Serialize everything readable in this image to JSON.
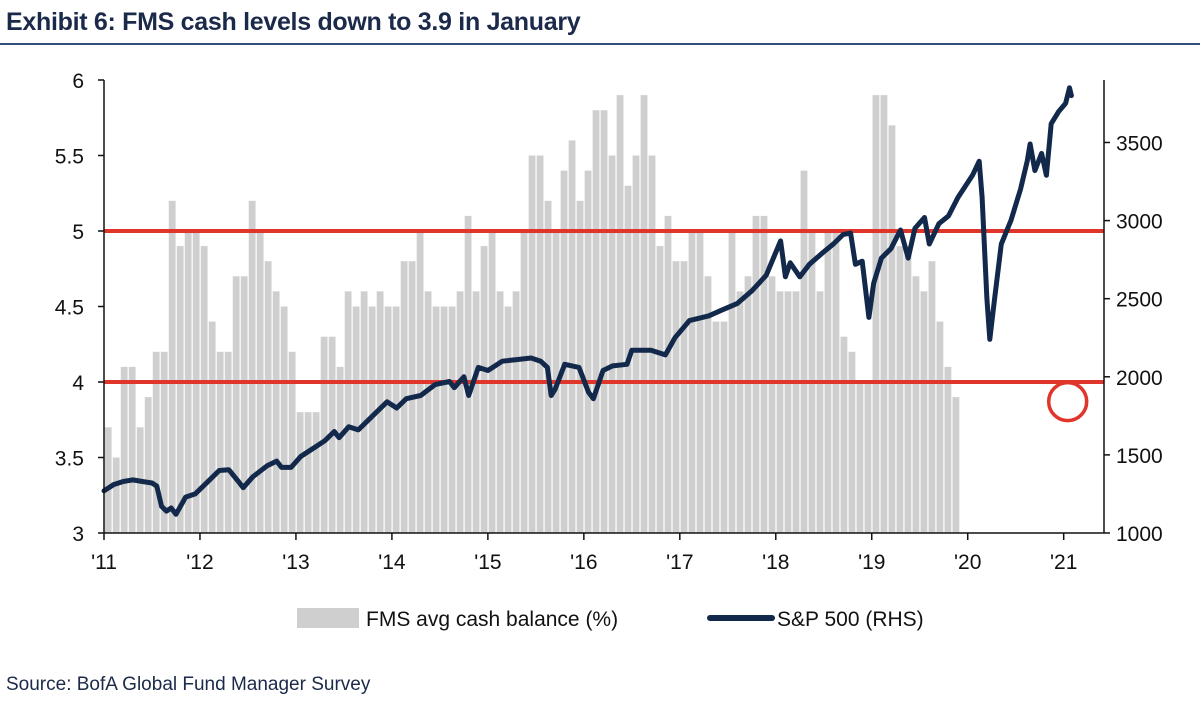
{
  "title": "Exhibit 6: FMS cash levels down to 3.9 in January",
  "source": "Source: BofA Global Fund Manager Survey",
  "colors": {
    "bars": "#cfcfcf",
    "line": "#13294b",
    "threshold": "#e0352b",
    "title": "#1b2a4a",
    "rule": "#33507a"
  },
  "chart_data": {
    "type": "bar+line",
    "title": "Exhibit 6: FMS cash levels down to 3.9 in January",
    "x_tick_labels": [
      "'11",
      "'12",
      "'13",
      "'14",
      "'15",
      "'16",
      "'17",
      "'18",
      "'19",
      "'20",
      "'21"
    ],
    "x_range_years": [
      2011.0,
      2021.42
    ],
    "y_left": {
      "range": [
        3,
        6
      ],
      "ticks": [
        3,
        3.5,
        4,
        4.5,
        5,
        5.5,
        6
      ]
    },
    "y_right": {
      "range": [
        1000,
        3900
      ],
      "ticks": [
        1000,
        1500,
        2000,
        2500,
        3000,
        3500
      ]
    },
    "legend": {
      "position": "bottom",
      "entries": [
        "FMS avg cash balance (%)",
        "S&P 500 (RHS)"
      ]
    },
    "reference_lines": [
      5.0,
      4.0
    ],
    "highlight": {
      "series": "FMS avg cash balance (%)",
      "month": "2021-01",
      "value": 3.9
    },
    "series": [
      {
        "name": "FMS avg cash balance (%)",
        "kind": "bar",
        "axis": "left",
        "start": "2011-01",
        "frequency": "monthly",
        "values": [
          3.7,
          3.5,
          4.1,
          4.1,
          3.7,
          3.9,
          4.2,
          4.2,
          5.2,
          4.9,
          5.0,
          5.0,
          4.9,
          4.4,
          4.2,
          4.2,
          4.7,
          4.7,
          5.2,
          5.0,
          4.8,
          4.6,
          4.5,
          4.2,
          3.8,
          3.8,
          3.8,
          4.3,
          4.3,
          4.1,
          4.6,
          4.5,
          4.6,
          4.5,
          4.6,
          4.5,
          4.5,
          4.8,
          4.8,
          5.0,
          4.6,
          4.5,
          4.5,
          4.5,
          4.6,
          5.1,
          4.6,
          4.9,
          5.0,
          4.6,
          4.5,
          4.6,
          5.0,
          5.5,
          5.5,
          5.2,
          5.0,
          5.4,
          5.6,
          5.2,
          5.4,
          5.8,
          5.8,
          5.5,
          5.9,
          5.3,
          5.5,
          5.9,
          5.5,
          4.9,
          5.1,
          4.8,
          4.8,
          5.0,
          5.0,
          4.7,
          4.4,
          4.4,
          5.0,
          4.6,
          4.7,
          5.1,
          5.1,
          4.7,
          4.6,
          4.6,
          4.6,
          5.4,
          5.0,
          4.6,
          5.0,
          5.0,
          4.3,
          4.2,
          4.0,
          4.0,
          5.9,
          5.9,
          5.7,
          4.9,
          4.9,
          4.7,
          4.6,
          4.8,
          4.4,
          4.1,
          3.9
        ]
      },
      {
        "name": "S&P 500 (RHS)",
        "kind": "line",
        "axis": "right",
        "x_unit": "year",
        "points": [
          [
            2011.0,
            1270
          ],
          [
            2011.1,
            1310
          ],
          [
            2011.2,
            1330
          ],
          [
            2011.3,
            1340
          ],
          [
            2011.4,
            1330
          ],
          [
            2011.5,
            1320
          ],
          [
            2011.55,
            1300
          ],
          [
            2011.6,
            1170
          ],
          [
            2011.65,
            1140
          ],
          [
            2011.7,
            1160
          ],
          [
            2011.75,
            1120
          ],
          [
            2011.85,
            1230
          ],
          [
            2011.95,
            1250
          ],
          [
            2012.1,
            1340
          ],
          [
            2012.2,
            1400
          ],
          [
            2012.3,
            1405
          ],
          [
            2012.4,
            1330
          ],
          [
            2012.45,
            1290
          ],
          [
            2012.55,
            1360
          ],
          [
            2012.7,
            1430
          ],
          [
            2012.8,
            1460
          ],
          [
            2012.85,
            1420
          ],
          [
            2012.95,
            1420
          ],
          [
            2013.05,
            1490
          ],
          [
            2013.2,
            1550
          ],
          [
            2013.3,
            1590
          ],
          [
            2013.4,
            1650
          ],
          [
            2013.45,
            1610
          ],
          [
            2013.55,
            1680
          ],
          [
            2013.65,
            1660
          ],
          [
            2013.8,
            1750
          ],
          [
            2013.95,
            1840
          ],
          [
            2014.05,
            1800
          ],
          [
            2014.15,
            1860
          ],
          [
            2014.3,
            1880
          ],
          [
            2014.45,
            1950
          ],
          [
            2014.6,
            1970
          ],
          [
            2014.65,
            1930
          ],
          [
            2014.75,
            2000
          ],
          [
            2014.8,
            1880
          ],
          [
            2014.9,
            2060
          ],
          [
            2015.0,
            2040
          ],
          [
            2015.15,
            2100
          ],
          [
            2015.3,
            2110
          ],
          [
            2015.45,
            2120
          ],
          [
            2015.55,
            2100
          ],
          [
            2015.62,
            2060
          ],
          [
            2015.66,
            1880
          ],
          [
            2015.7,
            1920
          ],
          [
            2015.8,
            2080
          ],
          [
            2015.95,
            2060
          ],
          [
            2016.05,
            1900
          ],
          [
            2016.1,
            1860
          ],
          [
            2016.2,
            2040
          ],
          [
            2016.3,
            2070
          ],
          [
            2016.45,
            2080
          ],
          [
            2016.5,
            2170
          ],
          [
            2016.7,
            2170
          ],
          [
            2016.85,
            2140
          ],
          [
            2016.95,
            2250
          ],
          [
            2017.1,
            2360
          ],
          [
            2017.3,
            2390
          ],
          [
            2017.45,
            2430
          ],
          [
            2017.6,
            2470
          ],
          [
            2017.75,
            2550
          ],
          [
            2017.9,
            2650
          ],
          [
            2018.05,
            2870
          ],
          [
            2018.1,
            2640
          ],
          [
            2018.15,
            2730
          ],
          [
            2018.25,
            2640
          ],
          [
            2018.35,
            2720
          ],
          [
            2018.5,
            2800
          ],
          [
            2018.6,
            2850
          ],
          [
            2018.7,
            2910
          ],
          [
            2018.78,
            2920
          ],
          [
            2018.83,
            2720
          ],
          [
            2018.9,
            2740
          ],
          [
            2018.97,
            2380
          ],
          [
            2019.02,
            2600
          ],
          [
            2019.1,
            2760
          ],
          [
            2019.2,
            2820
          ],
          [
            2019.3,
            2940
          ],
          [
            2019.38,
            2760
          ],
          [
            2019.45,
            2950
          ],
          [
            2019.55,
            3020
          ],
          [
            2019.6,
            2850
          ],
          [
            2019.7,
            2980
          ],
          [
            2019.8,
            3030
          ],
          [
            2019.9,
            3150
          ],
          [
            2020.05,
            3290
          ],
          [
            2020.12,
            3380
          ],
          [
            2020.15,
            3150
          ],
          [
            2020.2,
            2500
          ],
          [
            2020.23,
            2240
          ],
          [
            2020.28,
            2500
          ],
          [
            2020.35,
            2850
          ],
          [
            2020.45,
            3000
          ],
          [
            2020.55,
            3200
          ],
          [
            2020.62,
            3380
          ],
          [
            2020.65,
            3490
          ],
          [
            2020.7,
            3320
          ],
          [
            2020.77,
            3430
          ],
          [
            2020.82,
            3290
          ],
          [
            2020.87,
            3620
          ],
          [
            2020.95,
            3700
          ],
          [
            2021.02,
            3750
          ],
          [
            2021.06,
            3850
          ],
          [
            2021.08,
            3800
          ]
        ]
      }
    ]
  }
}
